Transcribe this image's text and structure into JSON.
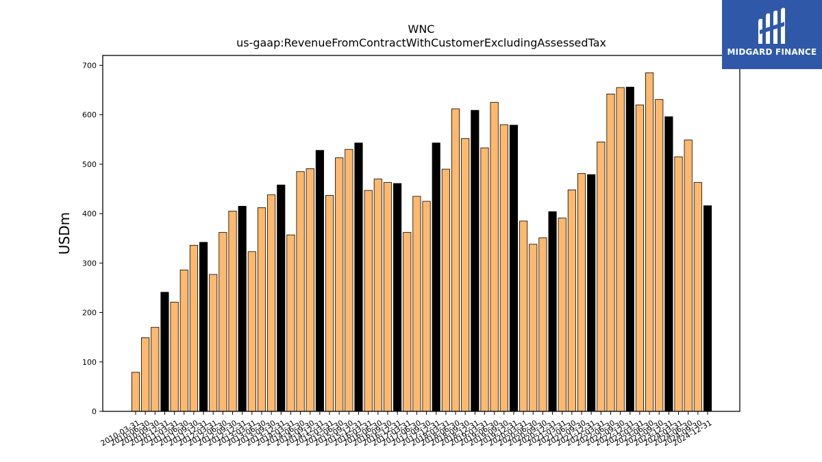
{
  "chart_data": {
    "type": "bar",
    "title": "WNC",
    "subtitle": "us-gaap:RevenueFromContractWithCustomerExcludingAssessedTax",
    "xlabel": "",
    "ylabel": "USDm",
    "ylim": [
      0,
      720
    ],
    "yticks": [
      0,
      100,
      200,
      300,
      400,
      500,
      600,
      700
    ],
    "grid": false,
    "colors": {
      "quarter": "#ffb86c",
      "annual": "#000000",
      "edge": "#000000"
    },
    "categories": [
      "2010-03-31",
      "2010-06-30",
      "2010-09-30",
      "2010-12-31",
      "2011-03-31",
      "2011-06-30",
      "2011-09-30",
      "2011-12-31",
      "2012-03-31",
      "2012-06-30",
      "2012-09-30",
      "2012-12-31",
      "2013-03-31",
      "2013-06-30",
      "2013-09-30",
      "2013-12-31",
      "2014-03-31",
      "2014-06-30",
      "2014-09-30",
      "2014-12-31",
      "2015-03-31",
      "2015-06-30",
      "2015-09-30",
      "2015-12-31",
      "2016-03-31",
      "2016-06-30",
      "2016-09-30",
      "2016-12-31",
      "2017-03-31",
      "2017-06-30",
      "2017-09-30",
      "2017-12-31",
      "2018-03-31",
      "2018-06-30",
      "2018-09-30",
      "2018-12-31",
      "2019-03-31",
      "2019-06-30",
      "2019-09-30",
      "2019-12-31",
      "2020-03-31",
      "2020-06-30",
      "2020-09-30",
      "2020-12-31",
      "2021-03-31",
      "2021-06-30",
      "2021-09-30",
      "2021-12-31",
      "2022-03-31",
      "2022-06-30",
      "2022-09-30",
      "2022-12-31",
      "2023-03-31",
      "2023-06-30",
      "2023-09-30",
      "2023-12-31",
      "2024-03-31",
      "2024-06-30",
      "2024-09-30",
      "2024-12-31"
    ],
    "values": [
      79,
      149,
      170,
      241,
      221,
      286,
      336,
      342,
      277,
      362,
      405,
      415,
      323,
      412,
      438,
      458,
      357,
      485,
      491,
      528,
      437,
      513,
      530,
      543,
      447,
      470,
      463,
      461,
      362,
      435,
      425,
      543,
      490,
      612,
      552,
      609,
      533,
      625,
      580,
      579,
      385,
      338,
      351,
      404,
      391,
      448,
      481,
      479,
      545,
      642,
      655,
      656,
      620,
      685,
      631,
      596,
      515,
      549,
      463,
      416
    ],
    "annual_flags": [
      0,
      0,
      0,
      1,
      0,
      0,
      0,
      1,
      0,
      0,
      0,
      1,
      0,
      0,
      0,
      1,
      0,
      0,
      0,
      1,
      0,
      0,
      0,
      1,
      0,
      0,
      0,
      1,
      0,
      0,
      0,
      1,
      0,
      0,
      0,
      1,
      0,
      0,
      0,
      1,
      0,
      0,
      0,
      1,
      0,
      0,
      0,
      1,
      0,
      0,
      0,
      1,
      0,
      0,
      0,
      1,
      0,
      0,
      0,
      1
    ]
  },
  "logo": {
    "text": "MIDGARD FINANCE",
    "background": "#2f58a8",
    "icon": "midgard-logo-icon"
  }
}
